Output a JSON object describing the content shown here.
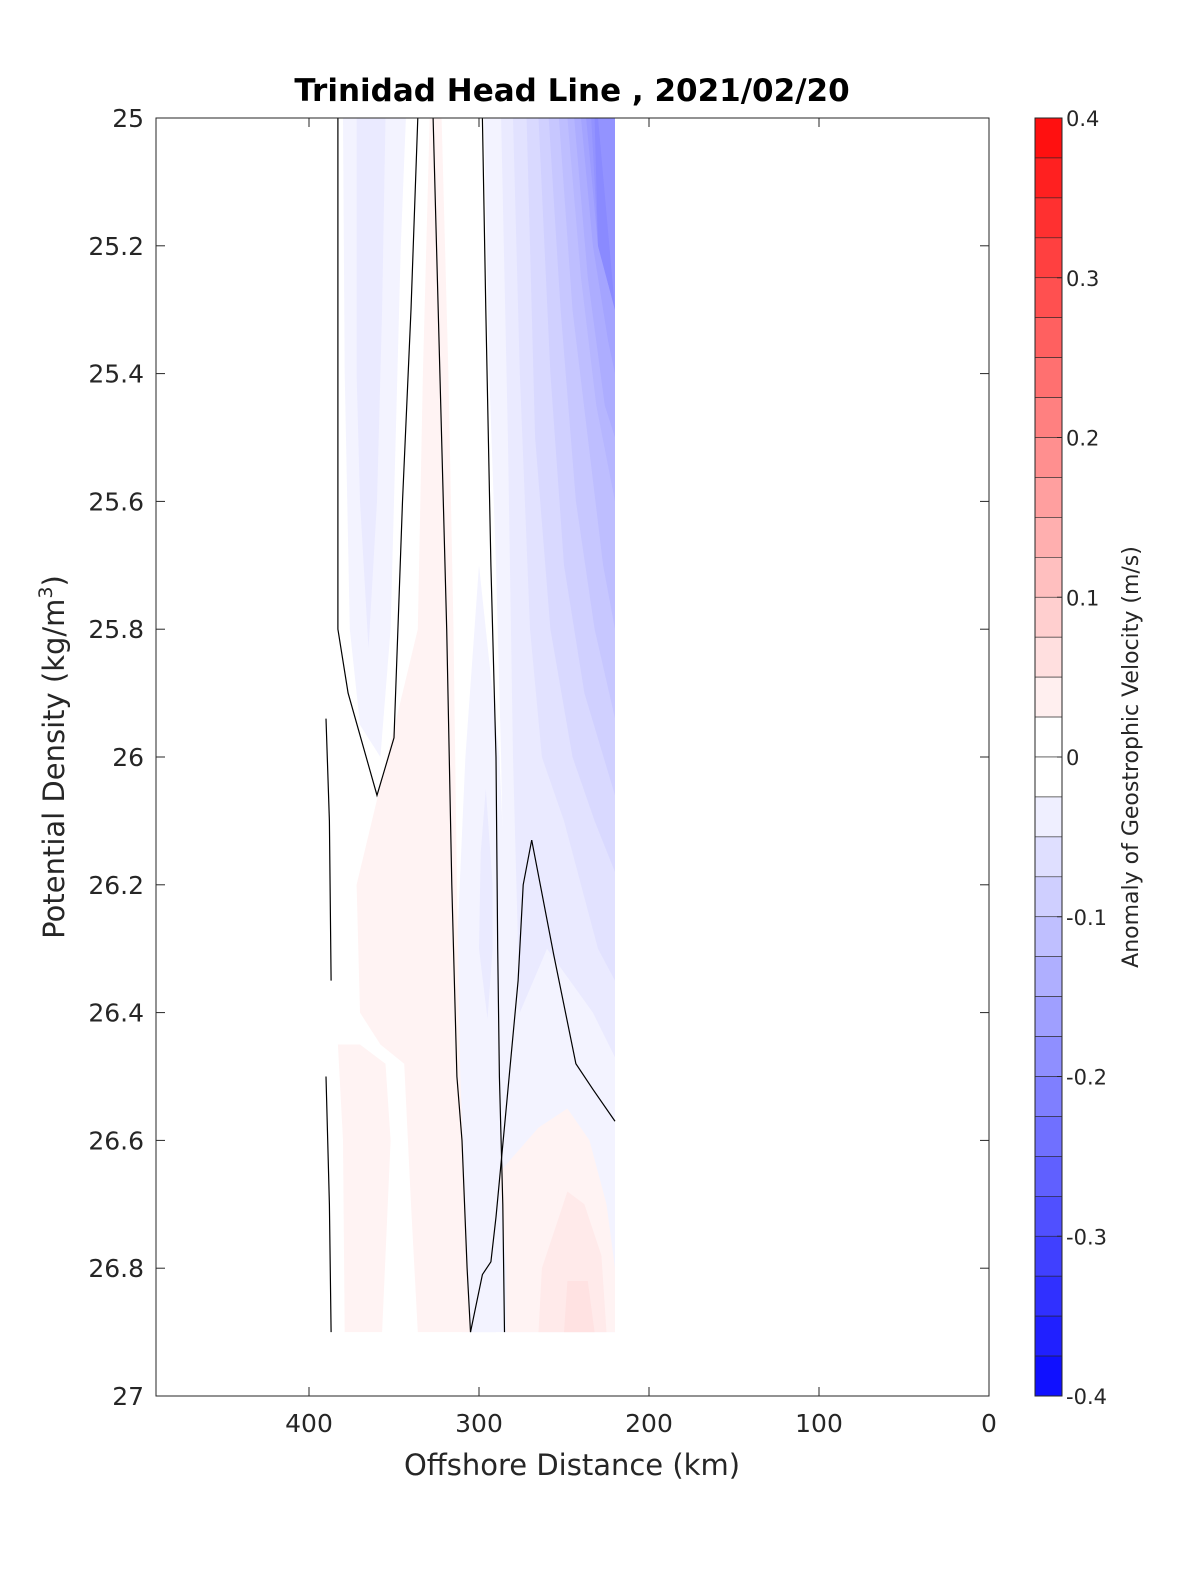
{
  "chart_data": {
    "type": "contour",
    "title": "Trinidad Head Line , 2021/02/20",
    "xlabel": "Offshore Distance (km)",
    "ylabel_main": "Potential Density (kg/m",
    "ylabel_sup": "3",
    "ylabel_end": ")",
    "x_axis": {
      "min": 0,
      "max": 490,
      "reversed": true,
      "ticks": [
        400,
        300,
        200,
        100,
        0
      ],
      "tick_labels": [
        "400",
        "300",
        "200",
        "100",
        "0"
      ]
    },
    "y_axis": {
      "min": 25,
      "max": 27,
      "reversed": true,
      "ticks": [
        25,
        25.2,
        25.4,
        25.6,
        25.8,
        26,
        26.2,
        26.4,
        26.6,
        26.8,
        27
      ],
      "tick_labels": [
        "25",
        "25.2",
        "25.4",
        "25.6",
        "25.8",
        "26",
        "26.2",
        "26.4",
        "26.6",
        "26.8",
        "27"
      ]
    },
    "colorbar": {
      "label": "Anomaly of Geostrophic Velocity (m/s)",
      "min": -0.4,
      "max": 0.4,
      "step": 0.025,
      "ticks": [
        0.4,
        0.3,
        0.2,
        0.1,
        0,
        -0.1,
        -0.2,
        -0.3,
        -0.4
      ],
      "tick_labels": [
        "0.4",
        "0.3",
        "0.2",
        "0.1",
        "0",
        "-0.1",
        "-0.2",
        "-0.3",
        "-0.4"
      ],
      "neg_color": "#0000ff",
      "pos_color": "#ff0000",
      "zero_color": "#ffffff"
    },
    "data_extent": {
      "x": [
        220,
        390
      ],
      "y": [
        25,
        26.9
      ]
    },
    "zero_contours": [
      [
        [
          383,
          25.0
        ],
        [
          383,
          25.8
        ],
        [
          377,
          25.9
        ],
        [
          360,
          26.06
        ],
        [
          350,
          25.97
        ],
        [
          345,
          25.6
        ],
        [
          340,
          25.3
        ],
        [
          336,
          25.0
        ]
      ],
      [
        [
          390,
          25.94
        ],
        [
          388,
          26.1
        ],
        [
          387,
          26.35
        ]
      ],
      [
        [
          390,
          26.5
        ],
        [
          388,
          26.7
        ],
        [
          387,
          26.9
        ]
      ],
      [
        [
          327,
          25.0
        ],
        [
          323,
          25.4
        ],
        [
          319,
          25.8
        ],
        [
          316,
          26.2
        ],
        [
          313,
          26.5
        ],
        [
          310,
          26.6
        ],
        [
          307,
          26.8
        ],
        [
          305,
          26.9
        ]
      ],
      [
        [
          298,
          25.0
        ],
        [
          296,
          25.3
        ],
        [
          293,
          25.7
        ],
        [
          290,
          26.0
        ],
        [
          289,
          26.3
        ],
        [
          288,
          26.5
        ],
        [
          286,
          26.7
        ],
        [
          285,
          26.9
        ]
      ],
      [
        [
          269,
          26.13
        ],
        [
          274,
          26.2
        ],
        [
          276,
          26.3
        ],
        [
          277,
          26.35
        ],
        [
          284,
          26.55
        ],
        [
          290,
          26.72
        ],
        [
          293,
          26.79
        ],
        [
          298,
          26.81
        ],
        [
          305,
          26.9
        ]
      ],
      [
        [
          269,
          26.13
        ],
        [
          256,
          26.31
        ],
        [
          243,
          26.48
        ],
        [
          233,
          26.52
        ],
        [
          220,
          26.57
        ]
      ]
    ],
    "regions": [
      {
        "v": -0.025,
        "pts": [
          [
            380,
            25.0
          ],
          [
            379,
            25.4
          ],
          [
            376,
            25.8
          ],
          [
            370,
            25.95
          ],
          [
            358,
            26.0
          ],
          [
            352,
            25.8
          ],
          [
            349,
            25.5
          ],
          [
            346,
            25.2
          ],
          [
            343,
            25.0
          ]
        ]
      },
      {
        "v": -0.05,
        "pts": [
          [
            372,
            25.0
          ],
          [
            372,
            25.4
          ],
          [
            370,
            25.6
          ],
          [
            365,
            25.83
          ],
          [
            360,
            25.6
          ],
          [
            357,
            25.3
          ],
          [
            355,
            25.0
          ]
        ]
      },
      {
        "v": -0.025,
        "pts": [
          [
            297,
            25.0
          ],
          [
            294,
            25.4
          ],
          [
            290,
            25.7
          ],
          [
            287,
            26.0
          ],
          [
            285,
            26.3
          ],
          [
            284,
            26.55
          ],
          [
            305,
            26.9
          ],
          [
            220,
            26.9
          ],
          [
            220,
            25.0
          ]
        ]
      },
      {
        "v": -0.05,
        "pts": [
          [
            287,
            25.0
          ],
          [
            283,
            25.5
          ],
          [
            280,
            26.0
          ],
          [
            276,
            26.4
          ],
          [
            260,
            26.3
          ],
          [
            233,
            26.4
          ],
          [
            220,
            26.47
          ],
          [
            220,
            25.0
          ]
        ]
      },
      {
        "v": -0.075,
        "pts": [
          [
            280,
            25.0
          ],
          [
            276,
            25.4
          ],
          [
            270,
            25.8
          ],
          [
            263,
            26.0
          ],
          [
            250,
            26.1
          ],
          [
            240,
            26.2
          ],
          [
            230,
            26.3
          ],
          [
            220,
            26.35
          ],
          [
            220,
            25.0
          ]
        ]
      },
      {
        "v": -0.1,
        "pts": [
          [
            272,
            25.0
          ],
          [
            267,
            25.5
          ],
          [
            258,
            25.8
          ],
          [
            245,
            26.0
          ],
          [
            232,
            26.1
          ],
          [
            220,
            26.18
          ],
          [
            220,
            25.0
          ]
        ]
      },
      {
        "v": -0.125,
        "pts": [
          [
            265,
            25.0
          ],
          [
            258,
            25.4
          ],
          [
            250,
            25.7
          ],
          [
            238,
            25.9
          ],
          [
            220,
            26.06
          ],
          [
            220,
            25.0
          ]
        ]
      },
      {
        "v": -0.15,
        "pts": [
          [
            259,
            25.0
          ],
          [
            252,
            25.3
          ],
          [
            243,
            25.6
          ],
          [
            232,
            25.8
          ],
          [
            220,
            25.94
          ],
          [
            220,
            25.0
          ]
        ]
      },
      {
        "v": -0.175,
        "pts": [
          [
            253,
            25.0
          ],
          [
            245,
            25.3
          ],
          [
            236,
            25.5
          ],
          [
            227,
            25.7
          ],
          [
            220,
            25.8
          ],
          [
            220,
            25.0
          ]
        ]
      },
      {
        "v": -0.2,
        "pts": [
          [
            248,
            25.0
          ],
          [
            240,
            25.25
          ],
          [
            231,
            25.45
          ],
          [
            220,
            25.6
          ],
          [
            220,
            25.0
          ]
        ]
      },
      {
        "v": -0.225,
        "pts": [
          [
            244,
            25.0
          ],
          [
            236,
            25.25
          ],
          [
            226,
            25.45
          ],
          [
            220,
            25.5
          ],
          [
            220,
            25.0
          ]
        ]
      },
      {
        "v": -0.25,
        "pts": [
          [
            240,
            25.0
          ],
          [
            233,
            25.2
          ],
          [
            224,
            25.35
          ],
          [
            220,
            25.4
          ],
          [
            220,
            25.0
          ]
        ]
      },
      {
        "v": -0.275,
        "pts": [
          [
            237,
            25.0
          ],
          [
            230,
            25.2
          ],
          [
            220,
            25.3
          ],
          [
            220,
            25.0
          ]
        ]
      },
      {
        "v": -0.3,
        "pts": [
          [
            234,
            25.0
          ],
          [
            230,
            25.2
          ],
          [
            220,
            25.3
          ],
          [
            220,
            25.0
          ]
        ]
      },
      {
        "v": -0.325,
        "pts": [
          [
            232,
            25.0
          ],
          [
            230,
            25.2
          ],
          [
            220,
            25.3
          ],
          [
            230,
            25.0
          ]
        ]
      },
      {
        "v": -0.025,
        "pts": [
          [
            300,
            25.7
          ],
          [
            288,
            26.0
          ],
          [
            283,
            26.3
          ],
          [
            282,
            26.6
          ],
          [
            285,
            26.8
          ],
          [
            290,
            26.9
          ],
          [
            310,
            26.9
          ],
          [
            311,
            26.6
          ],
          [
            313,
            26.3
          ],
          [
            308,
            26.0
          ]
        ]
      },
      {
        "v": -0.05,
        "pts": [
          [
            296,
            26.05
          ],
          [
            292,
            26.2
          ],
          [
            292,
            26.3
          ],
          [
            295,
            26.41
          ],
          [
            300,
            26.3
          ],
          [
            299,
            26.15
          ]
        ]
      },
      {
        "v": 0.025,
        "pts": [
          [
            322,
            25.0
          ],
          [
            318,
            25.4
          ],
          [
            315,
            25.8
          ],
          [
            313,
            26.2
          ],
          [
            311,
            26.5
          ],
          [
            308,
            26.7
          ],
          [
            305,
            26.9
          ],
          [
            336,
            26.9
          ],
          [
            340,
            26.7
          ],
          [
            344,
            26.48
          ],
          [
            358,
            26.45
          ],
          [
            370,
            26.4
          ],
          [
            372,
            26.2
          ],
          [
            336,
            25.8
          ],
          [
            333,
            25.4
          ],
          [
            329,
            25.0
          ]
        ]
      },
      {
        "v": 0.025,
        "pts": [
          [
            383,
            26.45
          ],
          [
            380,
            26.6
          ],
          [
            379,
            26.9
          ],
          [
            357,
            26.9
          ],
          [
            352,
            26.6
          ],
          [
            355,
            26.48
          ],
          [
            370,
            26.45
          ]
        ]
      },
      {
        "v": 0.025,
        "pts": [
          [
            288,
            26.65
          ],
          [
            284,
            26.8
          ],
          [
            284,
            26.9
          ],
          [
            220,
            26.9
          ],
          [
            220,
            26.8
          ],
          [
            225,
            26.7
          ],
          [
            235,
            26.6
          ],
          [
            248,
            26.55
          ],
          [
            265,
            26.58
          ]
        ]
      },
      {
        "v": 0.05,
        "pts": [
          [
            263,
            26.8
          ],
          [
            265,
            26.9
          ],
          [
            225,
            26.9
          ],
          [
            228,
            26.78
          ],
          [
            238,
            26.7
          ],
          [
            248,
            26.68
          ]
        ]
      },
      {
        "v": 0.075,
        "pts": [
          [
            248,
            26.82
          ],
          [
            250,
            26.9
          ],
          [
            232,
            26.9
          ],
          [
            236,
            26.82
          ]
        ]
      }
    ]
  }
}
